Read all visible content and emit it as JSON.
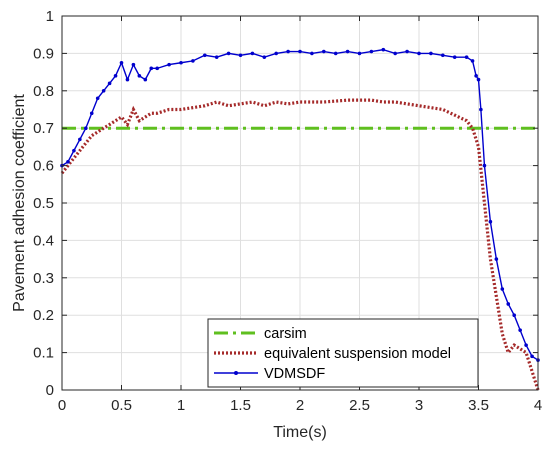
{
  "chart_data": {
    "type": "line",
    "xlabel": "Time(s)",
    "ylabel": "Pavement adhesion coefficient",
    "xlim": [
      0,
      4
    ],
    "ylim": [
      0,
      1
    ],
    "xticks": [
      "0",
      "0.5",
      "1",
      "1.5",
      "2",
      "2.5",
      "3",
      "3.5",
      "4"
    ],
    "yticks": [
      "0",
      "0.1",
      "0.2",
      "0.3",
      "0.4",
      "0.5",
      "0.6",
      "0.7",
      "0.8",
      "0.9",
      "1"
    ],
    "grid": true,
    "legend_position": "bottom-right",
    "series": [
      {
        "name": "carsim",
        "color": "#5fbf1f",
        "style": "dash-dot",
        "x": [
          0,
          4
        ],
        "y": [
          0.7,
          0.7
        ]
      },
      {
        "name": "equivalent suspension model",
        "color": "#a52a2a",
        "style": "dotted",
        "x": [
          0,
          0.05,
          0.1,
          0.15,
          0.2,
          0.25,
          0.3,
          0.35,
          0.4,
          0.45,
          0.5,
          0.55,
          0.6,
          0.65,
          0.7,
          0.75,
          0.8,
          0.9,
          1.0,
          1.1,
          1.2,
          1.3,
          1.4,
          1.5,
          1.6,
          1.7,
          1.8,
          1.9,
          2.0,
          2.2,
          2.4,
          2.6,
          2.7,
          2.8,
          3.0,
          3.2,
          3.4,
          3.45,
          3.5,
          3.55,
          3.6,
          3.65,
          3.7,
          3.75,
          3.8,
          3.85,
          3.9,
          3.95,
          4.0
        ],
        "y": [
          0.58,
          0.6,
          0.62,
          0.64,
          0.66,
          0.68,
          0.69,
          0.7,
          0.71,
          0.72,
          0.73,
          0.71,
          0.75,
          0.72,
          0.73,
          0.74,
          0.74,
          0.75,
          0.75,
          0.755,
          0.76,
          0.77,
          0.76,
          0.765,
          0.77,
          0.76,
          0.77,
          0.765,
          0.77,
          0.77,
          0.775,
          0.775,
          0.77,
          0.77,
          0.76,
          0.75,
          0.72,
          0.7,
          0.65,
          0.5,
          0.35,
          0.25,
          0.15,
          0.1,
          0.12,
          0.11,
          0.1,
          0.05,
          0.0
        ]
      },
      {
        "name": "VDMSDF",
        "color": "#0000cd",
        "style": "solid-markers",
        "x": [
          0,
          0.05,
          0.1,
          0.15,
          0.2,
          0.25,
          0.3,
          0.35,
          0.4,
          0.45,
          0.5,
          0.55,
          0.6,
          0.65,
          0.7,
          0.75,
          0.8,
          0.9,
          1.0,
          1.1,
          1.2,
          1.3,
          1.4,
          1.5,
          1.6,
          1.7,
          1.8,
          1.9,
          2.0,
          2.1,
          2.2,
          2.3,
          2.4,
          2.5,
          2.6,
          2.7,
          2.8,
          2.9,
          3.0,
          3.1,
          3.2,
          3.3,
          3.4,
          3.45,
          3.48,
          3.5,
          3.52,
          3.55,
          3.6,
          3.65,
          3.7,
          3.75,
          3.8,
          3.85,
          3.9,
          3.95,
          4.0
        ],
        "y": [
          0.6,
          0.61,
          0.64,
          0.67,
          0.7,
          0.74,
          0.78,
          0.8,
          0.82,
          0.84,
          0.875,
          0.83,
          0.87,
          0.84,
          0.83,
          0.86,
          0.86,
          0.87,
          0.875,
          0.88,
          0.895,
          0.89,
          0.9,
          0.895,
          0.9,
          0.89,
          0.9,
          0.905,
          0.905,
          0.9,
          0.905,
          0.9,
          0.905,
          0.9,
          0.905,
          0.91,
          0.9,
          0.905,
          0.9,
          0.9,
          0.895,
          0.89,
          0.89,
          0.88,
          0.84,
          0.83,
          0.75,
          0.6,
          0.45,
          0.35,
          0.27,
          0.23,
          0.2,
          0.16,
          0.12,
          0.09,
          0.08
        ]
      }
    ]
  }
}
